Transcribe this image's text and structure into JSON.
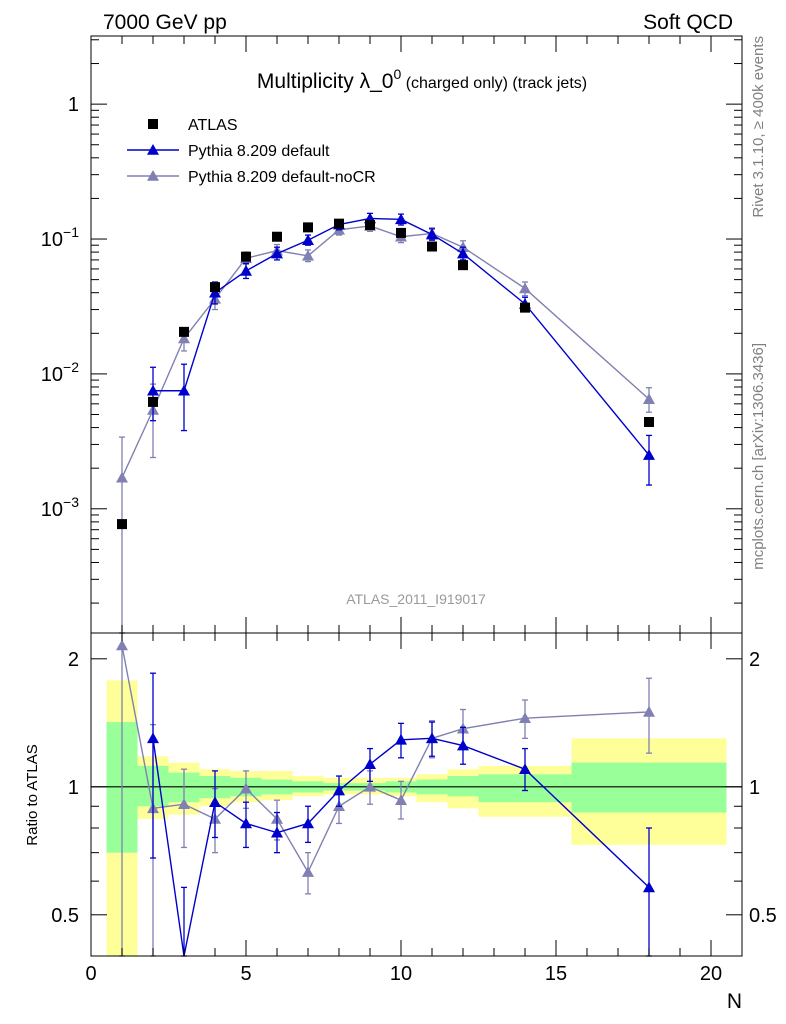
{
  "header": {
    "left": "7000 GeV pp",
    "right": "Soft QCD"
  },
  "side_text": {
    "top": "Rivet 3.1.10, ≥ 400k events",
    "bottom": "mcplots.cern.ch [arXiv:1306.3436]"
  },
  "analysis_label": "ATLAS_2011_I919017",
  "title_main": "Multiplicity λ_0",
  "title_sup": "0",
  "title_small": " (charged only) (track jets)",
  "chart_data": {
    "type": "scatter",
    "xlabel": "N",
    "ylabel_ratio": "Ratio to ATLAS",
    "xlim": [
      0,
      21
    ],
    "ylim_main": [
      0.00012,
      3.2
    ],
    "ylim_main_scale": "log",
    "ylim_ratio": [
      0.4,
      2.3
    ],
    "ylim_ratio_scale": "log",
    "legend_position": "top-left",
    "main_ticks": [
      {
        "value": 0.001,
        "base": "10",
        "exp": "−3"
      },
      {
        "value": 0.01,
        "base": "10",
        "exp": "−2"
      },
      {
        "value": 0.1,
        "base": "10",
        "exp": "−1"
      },
      {
        "value": 1,
        "base": "1",
        "exp": ""
      }
    ],
    "ratio_ticks": [
      {
        "value": 0.5,
        "label": "0.5"
      },
      {
        "value": 1,
        "label": "1"
      },
      {
        "value": 2,
        "label": "2"
      }
    ],
    "x_ticks": [
      {
        "value": 0,
        "label": "0"
      },
      {
        "value": 5,
        "label": "5"
      },
      {
        "value": 10,
        "label": "10"
      },
      {
        "value": 15,
        "label": "15"
      },
      {
        "value": 20,
        "label": "20"
      }
    ],
    "bands": [
      {
        "x0": 0.5,
        "x1": 1.5,
        "g": [
          0.7,
          1.42
        ],
        "y": [
          0.3,
          1.78
        ]
      },
      {
        "x0": 1.5,
        "x1": 2.5,
        "g": [
          0.9,
          1.12
        ],
        "y": [
          0.84,
          1.18
        ]
      },
      {
        "x0": 2.5,
        "x1": 3.5,
        "g": [
          0.92,
          1.08
        ],
        "y": [
          0.86,
          1.14
        ]
      },
      {
        "x0": 3.5,
        "x1": 4.5,
        "g": [
          0.94,
          1.06
        ],
        "y": [
          0.9,
          1.1
        ]
      },
      {
        "x0": 4.5,
        "x1": 5.5,
        "g": [
          0.95,
          1.05
        ],
        "y": [
          0.92,
          1.09
        ]
      },
      {
        "x0": 5.5,
        "x1": 6.5,
        "g": [
          0.96,
          1.04
        ],
        "y": [
          0.93,
          1.09
        ]
      },
      {
        "x0": 6.5,
        "x1": 7.5,
        "g": [
          0.97,
          1.03
        ],
        "y": [
          0.95,
          1.06
        ]
      },
      {
        "x0": 7.5,
        "x1": 8.5,
        "g": [
          0.98,
          1.02
        ],
        "y": [
          0.96,
          1.05
        ]
      },
      {
        "x0": 8.5,
        "x1": 9.5,
        "g": [
          0.98,
          1.02
        ],
        "y": [
          0.96,
          1.05
        ]
      },
      {
        "x0": 9.5,
        "x1": 10.5,
        "g": [
          0.97,
          1.03
        ],
        "y": [
          0.95,
          1.05
        ]
      },
      {
        "x0": 10.5,
        "x1": 11.5,
        "g": [
          0.96,
          1.04
        ],
        "y": [
          0.92,
          1.07
        ]
      },
      {
        "x0": 11.5,
        "x1": 12.5,
        "g": [
          0.95,
          1.06
        ],
        "y": [
          0.89,
          1.1
        ]
      },
      {
        "x0": 12.5,
        "x1": 15.5,
        "g": [
          0.92,
          1.07
        ],
        "y": [
          0.85,
          1.12
        ]
      },
      {
        "x0": 15.5,
        "x1": 20.5,
        "g": [
          0.87,
          1.14
        ],
        "y": [
          0.73,
          1.3
        ]
      }
    ],
    "series": [
      {
        "name": "ATLAS",
        "color": "#000000",
        "marker": "square",
        "points": [
          {
            "x": 1,
            "y": 0.00077
          },
          {
            "x": 2,
            "y": 0.0062
          },
          {
            "x": 3,
            "y": 0.0205
          },
          {
            "x": 4,
            "y": 0.044
          },
          {
            "x": 5,
            "y": 0.074
          },
          {
            "x": 6,
            "y": 0.104
          },
          {
            "x": 7,
            "y": 0.122
          },
          {
            "x": 8,
            "y": 0.13
          },
          {
            "x": 9,
            "y": 0.127
          },
          {
            "x": 10,
            "y": 0.111
          },
          {
            "x": 11,
            "y": 0.088
          },
          {
            "x": 12,
            "y": 0.064
          },
          {
            "x": 14,
            "y": 0.031
          },
          {
            "x": 18,
            "y": 0.0044
          }
        ]
      },
      {
        "name": "Pythia 8.209 default",
        "color": "#0000cc",
        "marker": "triangle",
        "points": [
          {
            "x": 2,
            "y": 0.0075,
            "lo": 0.0045,
            "hi": 0.0112,
            "r": 1.3,
            "rlo": 0.68,
            "rhi": 1.85
          },
          {
            "x": 3,
            "y": 0.0075,
            "lo": 0.0038,
            "hi": 0.0118,
            "r": 0.37,
            "rlo": 0.2,
            "rhi": 0.58
          },
          {
            "x": 4,
            "y": 0.04,
            "lo": 0.033,
            "hi": 0.048,
            "r": 0.92,
            "rlo": 0.76,
            "rhi": 1.09
          },
          {
            "x": 5,
            "y": 0.058,
            "lo": 0.051,
            "hi": 0.066,
            "r": 0.82,
            "rlo": 0.72,
            "rhi": 0.92
          },
          {
            "x": 6,
            "y": 0.078,
            "lo": 0.07,
            "hi": 0.087,
            "r": 0.78,
            "rlo": 0.7,
            "rhi": 0.87
          },
          {
            "x": 7,
            "y": 0.098,
            "lo": 0.09,
            "hi": 0.107,
            "r": 0.82,
            "rlo": 0.74,
            "rhi": 0.9
          },
          {
            "x": 8,
            "y": 0.128,
            "lo": 0.117,
            "hi": 0.139,
            "r": 0.98,
            "rlo": 0.9,
            "rhi": 1.06
          },
          {
            "x": 9,
            "y": 0.142,
            "lo": 0.13,
            "hi": 0.155,
            "r": 1.13,
            "rlo": 1.03,
            "rhi": 1.23
          },
          {
            "x": 10,
            "y": 0.14,
            "lo": 0.127,
            "hi": 0.153,
            "r": 1.29,
            "rlo": 1.17,
            "rhi": 1.41
          },
          {
            "x": 11,
            "y": 0.108,
            "lo": 0.098,
            "hi": 0.119,
            "r": 1.3,
            "rlo": 1.18,
            "rhi": 1.42
          },
          {
            "x": 12,
            "y": 0.078,
            "lo": 0.07,
            "hi": 0.087,
            "r": 1.25,
            "rlo": 1.13,
            "rhi": 1.38
          },
          {
            "x": 14,
            "y": 0.033,
            "lo": 0.029,
            "hi": 0.037,
            "r": 1.1,
            "rlo": 0.98,
            "rhi": 1.23
          },
          {
            "x": 18,
            "y": 0.0025,
            "lo": 0.0015,
            "hi": 0.0035,
            "r": 0.58,
            "rlo": 0.36,
            "rhi": 0.8
          }
        ]
      },
      {
        "name": "Pythia 8.209 default-noCR",
        "color": "#8080b3",
        "marker": "triangle",
        "points": [
          {
            "x": 1,
            "y": 0.0017,
            "lo": 0.0001,
            "hi": 0.0034,
            "r": 2.15,
            "rlo": 0.4,
            "rhi": 2.3
          },
          {
            "x": 2,
            "y": 0.0054,
            "lo": 0.0024,
            "hi": 0.0084,
            "r": 0.89,
            "rlo": 0.4,
            "rhi": 1.4
          },
          {
            "x": 3,
            "y": 0.0183,
            "lo": 0.0148,
            "hi": 0.022,
            "r": 0.91,
            "rlo": 0.72,
            "rhi": 1.1
          },
          {
            "x": 4,
            "y": 0.036,
            "lo": 0.03,
            "hi": 0.043,
            "r": 0.84,
            "rlo": 0.7,
            "rhi": 0.99
          },
          {
            "x": 5,
            "y": 0.072,
            "lo": 0.065,
            "hi": 0.08,
            "r": 0.99,
            "rlo": 0.89,
            "rhi": 1.09
          },
          {
            "x": 6,
            "y": 0.082,
            "lo": 0.074,
            "hi": 0.091,
            "r": 0.84,
            "rlo": 0.75,
            "rhi": 0.93
          },
          {
            "x": 7,
            "y": 0.075,
            "lo": 0.068,
            "hi": 0.083,
            "r": 0.63,
            "rlo": 0.56,
            "rhi": 0.7
          },
          {
            "x": 8,
            "y": 0.117,
            "lo": 0.107,
            "hi": 0.128,
            "r": 0.9,
            "rlo": 0.82,
            "rhi": 0.98
          },
          {
            "x": 9,
            "y": 0.125,
            "lo": 0.114,
            "hi": 0.137,
            "r": 1.0,
            "rlo": 0.91,
            "rhi": 1.09
          },
          {
            "x": 10,
            "y": 0.104,
            "lo": 0.094,
            "hi": 0.115,
            "r": 0.93,
            "rlo": 0.84,
            "rhi": 1.03
          },
          {
            "x": 11,
            "y": 0.11,
            "lo": 0.1,
            "hi": 0.121,
            "r": 1.3,
            "rlo": 1.17,
            "rhi": 1.43
          },
          {
            "x": 12,
            "y": 0.087,
            "lo": 0.078,
            "hi": 0.097,
            "r": 1.37,
            "rlo": 1.23,
            "rhi": 1.52
          },
          {
            "x": 14,
            "y": 0.043,
            "lo": 0.038,
            "hi": 0.048,
            "r": 1.45,
            "rlo": 1.3,
            "rhi": 1.6
          },
          {
            "x": 18,
            "y": 0.0065,
            "lo": 0.0052,
            "hi": 0.0079,
            "r": 1.5,
            "rlo": 1.2,
            "rhi": 1.8
          }
        ]
      }
    ]
  }
}
